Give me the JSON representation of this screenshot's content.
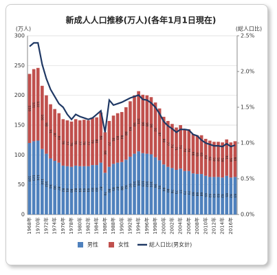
{
  "chart_data": {
    "type": "bar",
    "stacked": true,
    "title": "新成人人口推移(万人)(各年1月1日現在)",
    "y_label": "(万人)",
    "y2_label": "(総人口比)",
    "categories": [
      "1968年",
      null,
      "1970年",
      null,
      "1972年",
      null,
      "1974年",
      null,
      "1976年",
      null,
      "1978年",
      null,
      "1980年",
      null,
      "1982年",
      null,
      "1984年",
      null,
      "1986年",
      null,
      "1988年",
      null,
      "1990年",
      null,
      "1992年",
      null,
      "1994年",
      null,
      "1996年",
      null,
      "1998年",
      null,
      "2000年",
      null,
      "2002年",
      null,
      "2004年",
      null,
      "2006年",
      null,
      "2008年",
      null,
      "2010年",
      null,
      "2012年",
      null,
      "2014年",
      null,
      "2016年",
      null
    ],
    "series": [
      {
        "name": "男性",
        "color": "#4f81bd",
        "values": [
          120,
          123,
          124,
          110,
          102,
          94,
          90,
          87,
          82,
          81,
          80,
          82,
          81,
          81,
          81,
          83,
          83,
          87,
          70,
          80,
          85,
          87,
          88,
          92,
          97,
          102,
          106,
          103,
          102,
          101,
          96,
          91,
          84,
          80,
          78,
          75,
          77,
          73,
          73,
          69,
          68,
          68,
          65,
          63,
          63,
          63,
          62,
          65,
          62,
          63
        ]
      },
      {
        "name": "女性",
        "color": "#c0504d",
        "values": [
          116,
          121,
          122,
          106,
          98,
          91,
          87,
          83,
          78,
          77,
          76,
          78,
          77,
          78,
          77,
          79,
          80,
          84,
          68,
          77,
          81,
          83,
          84,
          88,
          93,
          98,
          101,
          98,
          98,
          96,
          92,
          87,
          80,
          77,
          74,
          71,
          73,
          70,
          70,
          66,
          65,
          65,
          62,
          61,
          59,
          59,
          59,
          61,
          59,
          60
        ]
      },
      {
        "name": "総人口比(男女計)",
        "color": "#1f3864",
        "type": "line",
        "axis": "y2",
        "values": [
          2.35,
          2.4,
          2.4,
          2.1,
          1.9,
          1.75,
          1.65,
          1.55,
          1.5,
          1.4,
          1.33,
          1.4,
          1.37,
          1.35,
          1.33,
          1.35,
          1.4,
          1.45,
          1.15,
          1.6,
          1.53,
          1.55,
          1.57,
          1.6,
          1.63,
          1.65,
          1.67,
          1.61,
          1.6,
          1.56,
          1.5,
          1.41,
          1.3,
          1.24,
          1.2,
          1.15,
          1.19,
          1.19,
          1.18,
          1.12,
          1.1,
          1.04,
          1.0,
          0.98,
          0.96,
          0.96,
          0.95,
          0.99,
          0.95,
          0.97
        ]
      }
    ],
    "ylim": [
      0,
      300
    ],
    "yticks": [
      0,
      50,
      100,
      150,
      200,
      250,
      300
    ],
    "y2lim": [
      0,
      2.5
    ],
    "y2ticks": [
      {
        "value": 0,
        "label": "0.0%"
      },
      {
        "value": 0.5,
        "label": "0.5%"
      },
      {
        "value": 1.0,
        "label": "1.0%"
      },
      {
        "value": 1.5,
        "label": "1.5%"
      },
      {
        "value": 2.0,
        "label": "2.0%"
      },
      {
        "value": 2.5,
        "label": "2.5%"
      }
    ],
    "grid": true,
    "legend": "bottom"
  }
}
